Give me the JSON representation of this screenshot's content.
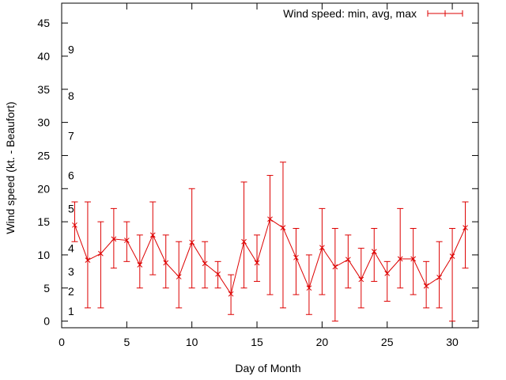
{
  "chart_data": {
    "type": "line",
    "title": "",
    "xlabel": "Day of Month",
    "ylabel": "Wind speed (kt. - Beaufort)",
    "xlim": [
      0,
      32
    ],
    "ylim": [
      -1,
      48
    ],
    "xticks": [
      0,
      5,
      10,
      15,
      20,
      25,
      30
    ],
    "yticks": [
      0,
      5,
      10,
      15,
      20,
      25,
      30,
      35,
      40,
      45
    ],
    "grid": false,
    "legend_position": "top-right",
    "series_color": "#dd0000",
    "series": [
      {
        "name": "Wind speed: min, avg, max",
        "x": [
          1,
          2,
          3,
          4,
          5,
          6,
          7,
          8,
          9,
          10,
          11,
          12,
          13,
          14,
          15,
          16,
          17,
          18,
          19,
          20,
          21,
          22,
          23,
          24,
          25,
          26,
          27,
          28,
          29,
          30,
          31
        ],
        "avg": [
          14.5,
          9.2,
          10.2,
          12.4,
          12.2,
          8.5,
          13.0,
          8.8,
          6.7,
          11.9,
          8.7,
          7.1,
          4.1,
          12.0,
          8.8,
          15.4,
          14.1,
          9.6,
          5.0,
          11.1,
          8.2,
          9.3,
          6.3,
          10.5,
          7.2,
          9.4,
          9.4,
          5.3,
          6.6,
          9.8,
          14.1
        ],
        "min": [
          12,
          2,
          2,
          8,
          9,
          5,
          7,
          5,
          2,
          5,
          5,
          5,
          1,
          5,
          6,
          4,
          2,
          4,
          1,
          4,
          0,
          5,
          2,
          6,
          3,
          5,
          4,
          2,
          2,
          0,
          8
        ],
        "max": [
          18,
          18,
          15,
          17,
          15,
          13,
          18,
          13,
          12,
          20,
          12,
          9,
          7,
          21,
          13,
          22,
          24,
          14,
          10,
          17,
          14,
          13,
          11,
          14,
          9,
          17,
          14,
          9,
          12,
          14,
          18
        ]
      }
    ],
    "beaufort_scale": [
      {
        "label": "1",
        "knots": 1.5
      },
      {
        "label": "2",
        "knots": 4.5
      },
      {
        "label": "3",
        "knots": 7.5
      },
      {
        "label": "4",
        "knots": 11.0
      },
      {
        "label": "5",
        "knots": 17.0
      },
      {
        "label": "6",
        "knots": 22.0
      },
      {
        "label": "7",
        "knots": 28.0
      },
      {
        "label": "8",
        "knots": 34.0
      },
      {
        "label": "9",
        "knots": 41.0
      }
    ]
  }
}
